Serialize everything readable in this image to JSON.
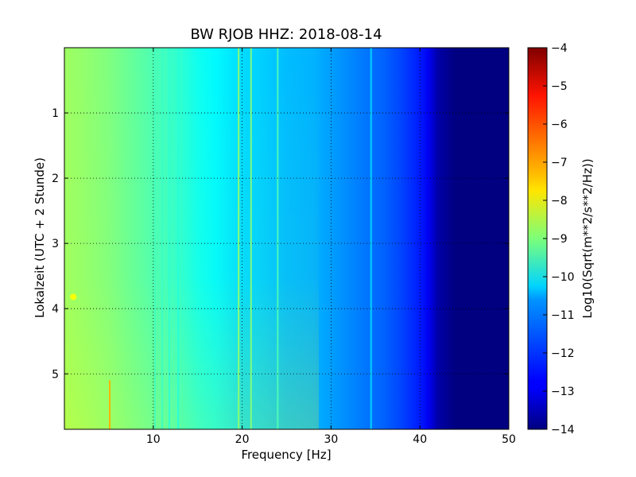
{
  "chart_data": {
    "type": "heatmap",
    "title": "BW RJOB HHZ: 2018-08-14",
    "xlabel": "Frequency [Hz]",
    "ylabel": "Lokalzeit (UTC + 2 Stunde)",
    "xlim": [
      0,
      50
    ],
    "ylim": [
      5.85,
      0
    ],
    "x_ticks": [
      10,
      20,
      30,
      40,
      50
    ],
    "y_ticks": [
      1,
      2,
      3,
      4,
      5
    ],
    "grid": true,
    "colorbar": {
      "label": "Log10(Sqrt(m**2/s**2/Hz))",
      "range": [
        -14,
        -4
      ],
      "ticks": [
        -14,
        -13,
        -12,
        -11,
        -10,
        -9,
        -8,
        -7,
        -6,
        -5,
        -4
      ],
      "colormap": "jet"
    },
    "spectrum_profile": {
      "frequency_hz": [
        0,
        2,
        5,
        8,
        10,
        13,
        15,
        17,
        20,
        22,
        25,
        28,
        30,
        32,
        34,
        36,
        38,
        40,
        41,
        42,
        44,
        50
      ],
      "log10_amplitude": [
        -8.7,
        -8.8,
        -9.0,
        -9.3,
        -9.5,
        -9.8,
        -10.1,
        -10.3,
        -10.6,
        -10.7,
        -10.9,
        -11.0,
        -11.2,
        -11.4,
        -11.6,
        -11.8,
        -12.1,
        -12.5,
        -12.9,
        -13.6,
        -14.0,
        -14.0
      ]
    },
    "spectral_lines": [
      {
        "frequency_hz": 10.2,
        "log10_amplitude": -9.6
      },
      {
        "frequency_hz": 11.0,
        "log10_amplitude": -9.7
      },
      {
        "frequency_hz": 11.8,
        "log10_amplitude": -9.8
      },
      {
        "frequency_hz": 12.8,
        "log10_amplitude": -9.9
      },
      {
        "frequency_hz": 19.6,
        "log10_amplitude": -8.8
      },
      {
        "frequency_hz": 21.0,
        "log10_amplitude": -8.9
      },
      {
        "frequency_hz": 24.0,
        "log10_amplitude": -9.5
      },
      {
        "frequency_hz": 34.5,
        "log10_amplitude": -10.6
      }
    ],
    "annotations": [
      {
        "frequency_hz": 5.1,
        "time_start": 5.1,
        "time_end": 5.85,
        "log10_amplitude": -7.0,
        "kind": "vertical streak"
      },
      {
        "frequency_hz": 1.0,
        "time": 3.82,
        "log10_amplitude": -7.8,
        "kind": "spot"
      }
    ],
    "time_trend": {
      "time_hours": [
        0,
        1,
        2,
        3,
        4,
        5,
        5.85
      ],
      "log10_offset": [
        0.0,
        0.05,
        0.1,
        0.15,
        0.35,
        0.45,
        0.6
      ]
    }
  }
}
